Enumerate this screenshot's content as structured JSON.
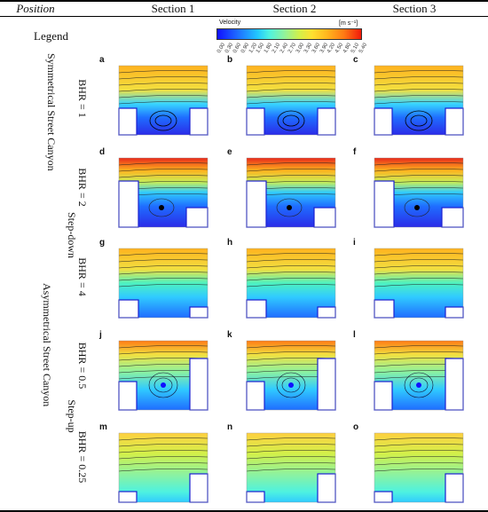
{
  "header": {
    "position": "Position",
    "section1": "Section 1",
    "section2": "Section 2",
    "section3": "Section 3"
  },
  "legend": {
    "label": "Legend",
    "title": "Velocity",
    "unit": "[m s⁻¹]",
    "ticks": [
      "0.00",
      "0.30",
      "0.60",
      "0.90",
      "1.20",
      "1.50",
      "1.80",
      "2.10",
      "2.40",
      "2.70",
      "3.00",
      "3.30",
      "3.60",
      "3.90",
      "4.20",
      "4.50",
      "4.80",
      "5.10",
      "5.40"
    ]
  },
  "rows": {
    "symmetrical": "Symmetrical Street Canyon",
    "asymmetrical": "Asymmetrical Street Canyon",
    "step_down": "Step-down",
    "step_up": "Step-up",
    "bhr": [
      "BHR = 1",
      "BHR = 2",
      "BHR = 4",
      "BHR = 0.5",
      "BHR = 0.25"
    ]
  },
  "panels": [
    "a",
    "b",
    "c",
    "d",
    "e",
    "f",
    "g",
    "h",
    "i",
    "j",
    "k",
    "l",
    "m",
    "n",
    "o"
  ],
  "colors": {
    "rule": "#000000",
    "building": "#1a20d0"
  }
}
